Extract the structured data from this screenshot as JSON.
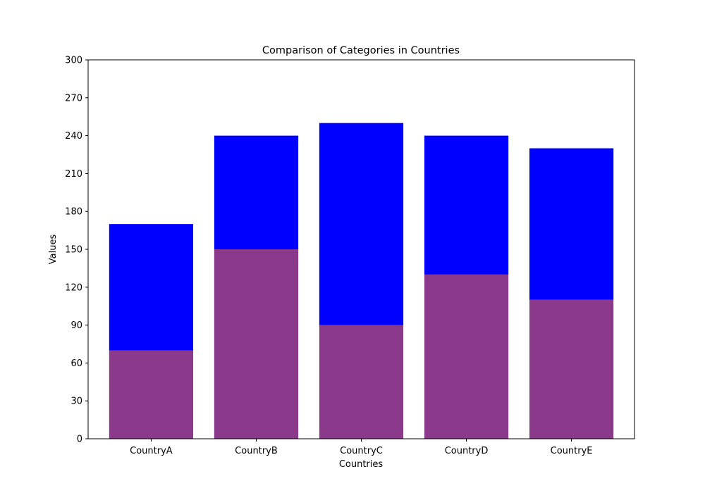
{
  "chart_data": {
    "type": "bar",
    "stacked": true,
    "title": "Comparison of Categories in Countries",
    "xlabel": "Countries",
    "ylabel": "Values",
    "categories": [
      "CountryA",
      "CountryB",
      "CountryC",
      "CountryD",
      "CountryE"
    ],
    "series": [
      {
        "values": [
          70,
          150,
          90,
          130,
          110
        ],
        "color": "#8b3a8b"
      },
      {
        "values": [
          100,
          90,
          160,
          110,
          120
        ],
        "color": "#0000ff"
      }
    ],
    "ylim": [
      0,
      300
    ],
    "yticks": [
      0,
      30,
      60,
      90,
      120,
      150,
      180,
      210,
      240,
      270,
      300
    ],
    "grid": false,
    "legend": "none"
  }
}
